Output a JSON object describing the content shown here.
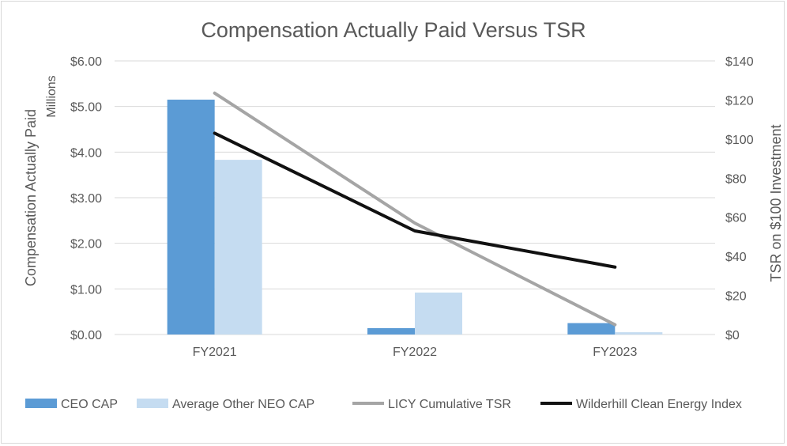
{
  "chart_data": {
    "type": "bar+line",
    "title": "Compensation Actually Paid Versus TSR",
    "categories": [
      "FY2021",
      "FY2022",
      "FY2023"
    ],
    "y_left": {
      "label": "Compensation Actually Paid",
      "unit_label": "Millions",
      "ylim": [
        0,
        6
      ],
      "ticks": [
        0,
        1,
        2,
        3,
        4,
        5,
        6
      ],
      "tick_labels": [
        "$0.00",
        "$1.00",
        "$2.00",
        "$3.00",
        "$4.00",
        "$5.00",
        "$6.00"
      ]
    },
    "y_right": {
      "label": "TSR on $100 Investment",
      "ylim": [
        0,
        140
      ],
      "ticks": [
        0,
        20,
        40,
        60,
        80,
        100,
        120,
        140
      ],
      "tick_labels": [
        "$0",
        "$20",
        "$40",
        "$60",
        "$80",
        "$100",
        "$120",
        "$140"
      ]
    },
    "series": [
      {
        "name": "CEO CAP",
        "kind": "bar",
        "axis": "left",
        "color": "#5b9bd5",
        "values": [
          5.15,
          0.14,
          0.25
        ]
      },
      {
        "name": "Average Other NEO CAP",
        "kind": "bar",
        "axis": "left",
        "color": "#c5dcf1",
        "values": [
          3.83,
          0.92,
          0.05
        ]
      },
      {
        "name": "LICY Cumulative TSR",
        "kind": "line",
        "axis": "right",
        "color": "#a5a5a5",
        "values": [
          123.5,
          57.0,
          5.0
        ]
      },
      {
        "name": "Wilderhill Clean Energy Index",
        "kind": "line",
        "axis": "right",
        "color": "#111111",
        "values": [
          103.0,
          53.0,
          34.5
        ]
      }
    ],
    "grid": true,
    "legend_position": "bottom"
  }
}
